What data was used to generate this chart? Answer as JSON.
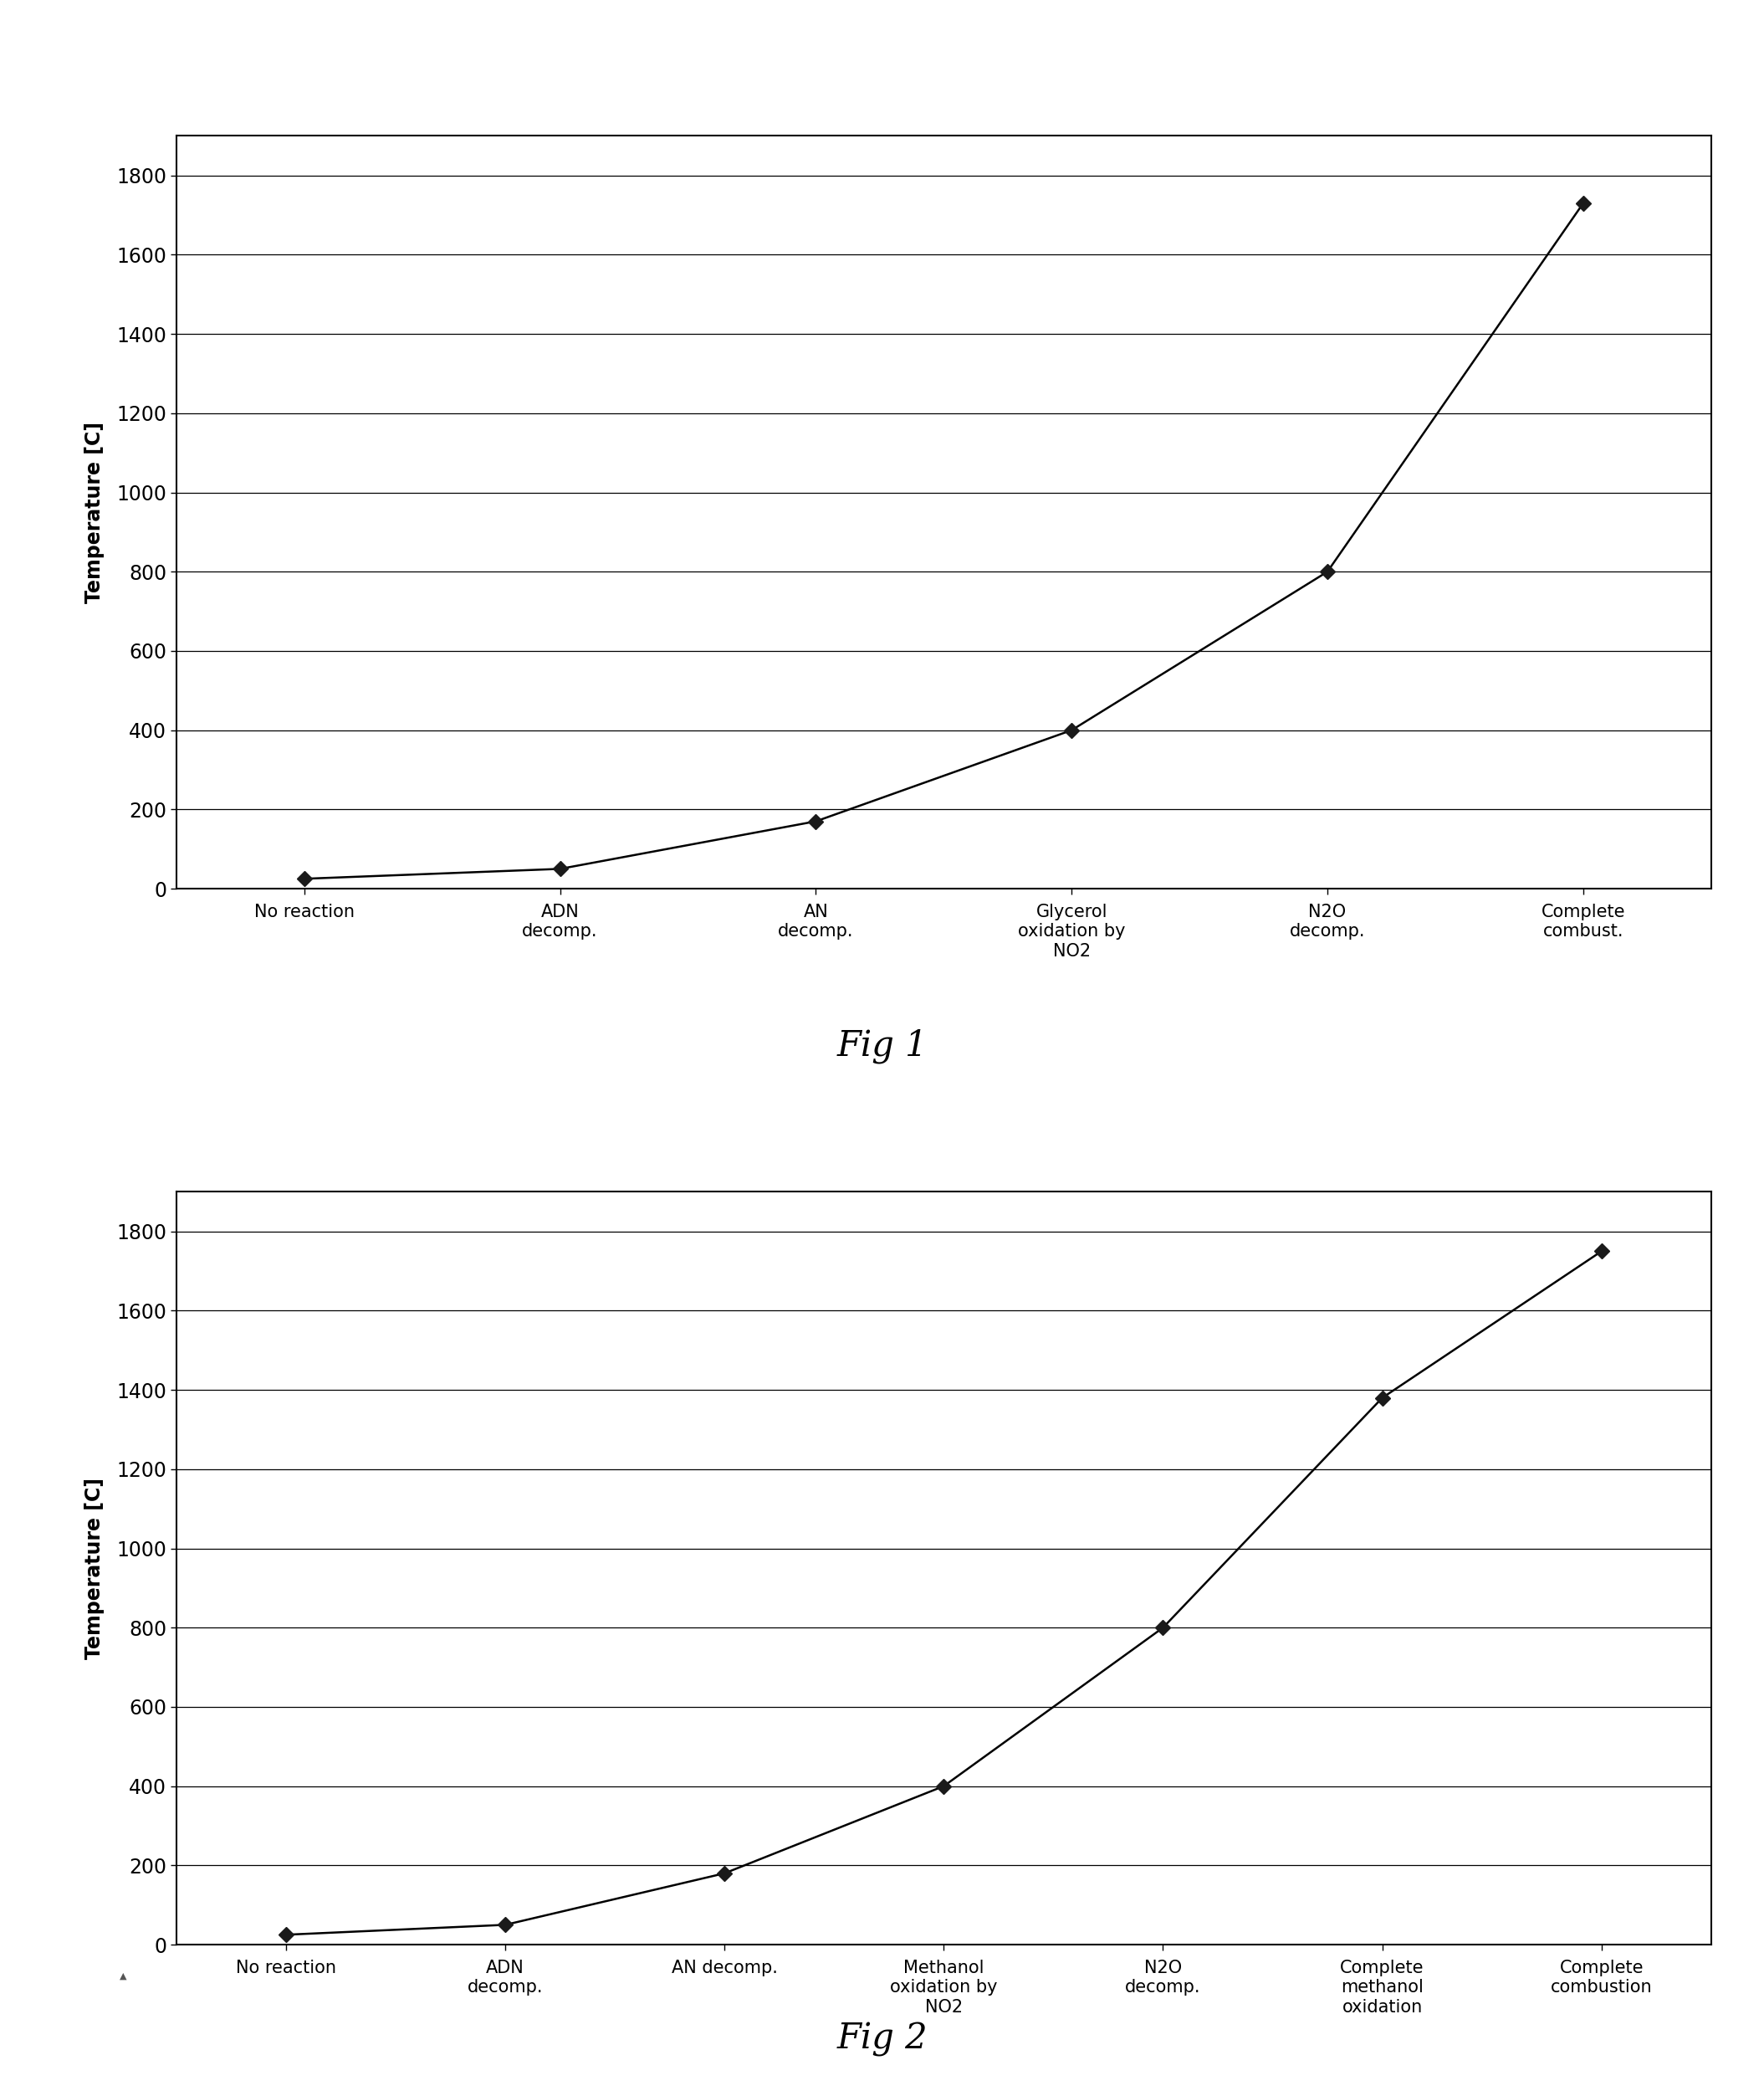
{
  "fig1": {
    "categories": [
      "No reaction",
      "ADN\ndecomp.",
      "AN\ndecomp.",
      "Glycerol\noxidation by\nNO2",
      "N2O\ndecomp.",
      "Complete\ncombust."
    ],
    "values": [
      25,
      50,
      170,
      400,
      800,
      1730
    ],
    "ylabel": "Temperature [C]",
    "ylim": [
      0,
      1900
    ],
    "yticks": [
      0,
      200,
      400,
      600,
      800,
      1000,
      1200,
      1400,
      1600,
      1800
    ],
    "caption": "Fig 1"
  },
  "fig2": {
    "categories": [
      "No reaction",
      "ADN\ndecomp.",
      "AN decomp.",
      "Methanol\noxidation by\nNO2",
      "N2O\ndecomp.",
      "Complete\nmethanol\noxidation",
      "Complete\ncombustion"
    ],
    "values": [
      25,
      50,
      180,
      400,
      800,
      1380,
      1750
    ],
    "ylabel": "Temperature [C]",
    "ylim": [
      0,
      1900
    ],
    "yticks": [
      0,
      200,
      400,
      600,
      800,
      1000,
      1200,
      1400,
      1600,
      1800
    ],
    "caption": "Fig 2"
  },
  "background_color": "#ffffff",
  "line_color": "#000000",
  "marker_color": "#1a1a1a",
  "marker": "D",
  "marker_size": 9,
  "line_width": 1.8,
  "font_size_ytick": 17,
  "font_size_ylabel": 17,
  "font_size_caption": 30,
  "font_size_xticklabels": 15,
  "grid_color": "#000000",
  "grid_linewidth": 0.9,
  "spine_linewidth": 1.5
}
